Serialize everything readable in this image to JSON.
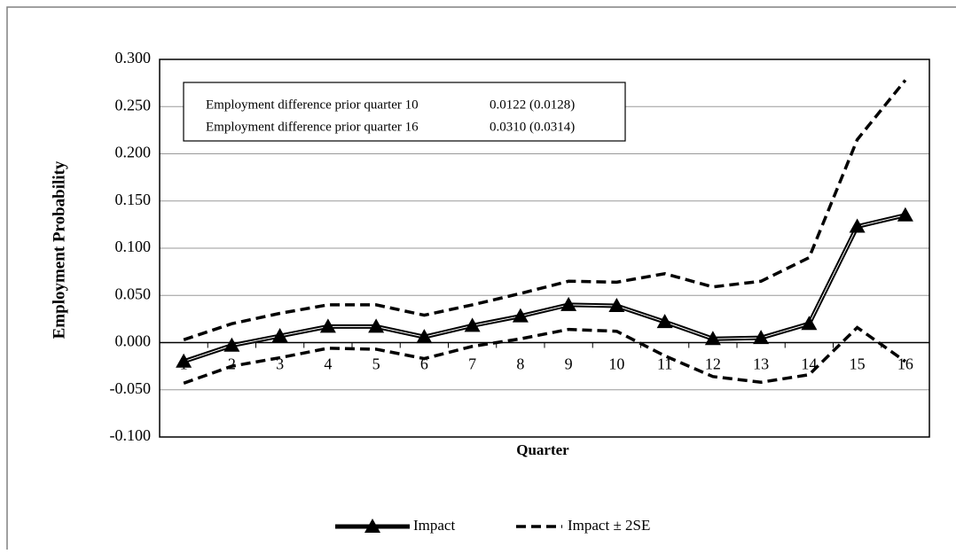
{
  "chart_data": {
    "type": "line",
    "x_label": "Quarter",
    "y_label": "Employment Probability",
    "categories": [
      "1",
      "2",
      "3",
      "4",
      "5",
      "6",
      "7",
      "8",
      "9",
      "10",
      "11",
      "12",
      "13",
      "14",
      "15",
      "16"
    ],
    "series": [
      {
        "name": "Impact",
        "color": "#000000",
        "marker": "triangle",
        "values": [
          -0.02,
          -0.003,
          0.007,
          0.017,
          0.017,
          0.006,
          0.018,
          0.028,
          0.04,
          0.039,
          0.022,
          0.004,
          0.005,
          0.02,
          0.123,
          0.135
        ]
      },
      {
        "name": "Impact ± 2SE",
        "color": "#000000",
        "dashed": true,
        "upper": [
          0.003,
          0.02,
          0.031,
          0.04,
          0.04,
          0.029,
          0.04,
          0.052,
          0.065,
          0.064,
          0.073,
          0.059,
          0.065,
          0.09,
          0.215,
          0.278
        ],
        "lower": [
          -0.043,
          -0.025,
          -0.016,
          -0.006,
          -0.007,
          -0.017,
          -0.004,
          0.004,
          0.014,
          0.012,
          -0.014,
          -0.036,
          -0.042,
          -0.034,
          0.016,
          -0.02
        ]
      }
    ],
    "ylim": [
      -0.1,
      0.3
    ],
    "yticks": [
      {
        "value": -0.1,
        "label": "-0.100"
      },
      {
        "value": -0.05,
        "label": "-0.050"
      },
      {
        "value": 0,
        "label": "0.000"
      },
      {
        "value": 0.05,
        "label": "0.050"
      },
      {
        "value": 0.1,
        "label": "0.100"
      },
      {
        "value": 0.15,
        "label": "0.150"
      },
      {
        "value": 0.2,
        "label": "0.200"
      },
      {
        "value": 0.25,
        "label": "0.250"
      },
      {
        "value": 0.3,
        "label": "0.300"
      }
    ],
    "grid": true,
    "annotation_table": [
      [
        "Employment difference prior quarter 10",
        "0.0122 (0.0128)"
      ],
      [
        "Employment difference prior quarter 16",
        "0.0310 (0.0314)"
      ]
    ]
  }
}
